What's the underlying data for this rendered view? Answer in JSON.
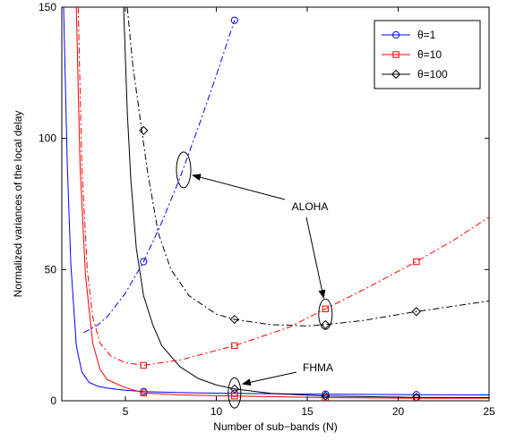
{
  "chart_data": {
    "type": "line",
    "title": "",
    "xlabel": "Number of sub−bands (N)",
    "ylabel": "Normalized variances of the local delay",
    "xlim": [
      1.5,
      25
    ],
    "ylim": [
      0,
      150
    ],
    "xticks": [
      5,
      10,
      15,
      20,
      25
    ],
    "yticks": [
      0,
      50,
      100,
      150
    ],
    "xtick_labels": [
      "5",
      "10",
      "15",
      "20",
      "25"
    ],
    "ytick_labels": [
      "0",
      "50",
      "100",
      "150"
    ],
    "grid": false,
    "legend_position": "top-right",
    "legend": [
      {
        "label": "θ=1",
        "color": "#0000ff",
        "marker": "circle"
      },
      {
        "label": "θ=10",
        "color": "#ff0000",
        "marker": "square"
      },
      {
        "label": "θ=100",
        "color": "#000000",
        "marker": "diamond"
      }
    ],
    "series": [
      {
        "group": "FHMA",
        "theta": "1",
        "color": "#0000ff",
        "linestyle": "solid",
        "marker": "circle",
        "x": [
          1.6,
          1.8,
          2,
          2.3,
          2.6,
          3,
          3.5,
          4,
          5,
          6,
          8,
          11,
          16,
          21,
          25
        ],
        "y": [
          150,
          90,
          52,
          21,
          11,
          7,
          5.5,
          4.8,
          4,
          3.5,
          3.1,
          2.8,
          2.5,
          2.3,
          2.2
        ],
        "marker_x": [
          6,
          11,
          16,
          21
        ],
        "marker_y": [
          3.5,
          2.8,
          2.5,
          2.3
        ]
      },
      {
        "group": "FHMA",
        "theta": "10",
        "color": "#ff0000",
        "linestyle": "solid",
        "marker": "square",
        "x": [
          2.3,
          2.5,
          2.8,
          3.2,
          3.6,
          4,
          5,
          6,
          8,
          11,
          16,
          21,
          25
        ],
        "y": [
          150,
          90,
          48,
          22,
          12,
          8,
          5,
          3,
          2.2,
          1.8,
          1.2,
          1.0,
          1.0
        ],
        "marker_x": [
          6,
          11,
          16,
          21
        ],
        "marker_y": [
          3,
          1.8,
          1.2,
          1.0
        ]
      },
      {
        "group": "FHMA",
        "theta": "100",
        "color": "#000000",
        "linestyle": "solid",
        "marker": "diamond",
        "x": [
          4.9,
          5.1,
          5.3,
          5.6,
          6,
          6.5,
          7,
          8,
          9,
          10,
          11,
          13,
          16,
          21,
          25
        ],
        "y": [
          150,
          110,
          84,
          58,
          40,
          29,
          21,
          13,
          8.5,
          6,
          4.5,
          2.8,
          1.8,
          1.3,
          1.2
        ],
        "marker_x": [
          11,
          16,
          21
        ],
        "marker_y": [
          4.5,
          1.8,
          1.3
        ]
      },
      {
        "group": "ALOHA",
        "theta": "1",
        "color": "#0000ff",
        "linestyle": "dashdot",
        "marker": "circle",
        "x": [
          2.7,
          3,
          3.5,
          4,
          5,
          6,
          7,
          8,
          9,
          10,
          11
        ],
        "y": [
          26,
          27,
          29,
          32,
          41,
          53,
          68,
          85,
          104,
          124,
          145
        ],
        "marker_x": [
          6,
          11
        ],
        "marker_y": [
          53,
          145
        ]
      },
      {
        "group": "ALOHA",
        "theta": "10",
        "color": "#ff0000",
        "linestyle": "dashdot",
        "marker": "square",
        "x": [
          2.4,
          2.6,
          2.9,
          3.2,
          3.6,
          4.2,
          5,
          6,
          8,
          11,
          14,
          16,
          18,
          21,
          23,
          25
        ],
        "y": [
          150,
          90,
          50,
          32,
          22,
          17,
          14.5,
          13.5,
          15.5,
          21,
          28,
          35,
          42,
          53,
          61,
          70
        ],
        "marker_x": [
          6,
          11,
          16,
          21
        ],
        "marker_y": [
          13.5,
          21,
          35,
          53
        ]
      },
      {
        "group": "ALOHA",
        "theta": "100",
        "color": "#000000",
        "linestyle": "dashdot",
        "marker": "diamond",
        "x": [
          5.1,
          5.4,
          5.8,
          6.2,
          6.8,
          7.5,
          8.5,
          10,
          11,
          13,
          15,
          16,
          18,
          21,
          23,
          25
        ],
        "y": [
          150,
          128,
          108,
          88,
          64,
          50,
          40,
          33,
          31,
          29,
          28.5,
          29,
          30.5,
          34,
          36,
          38
        ],
        "marker_x": [
          6,
          11,
          16,
          21
        ],
        "marker_y": [
          103,
          31,
          29,
          34
        ]
      }
    ],
    "annotations": [
      {
        "text": "ALOHA"
      },
      {
        "text": "FHMA"
      }
    ]
  }
}
